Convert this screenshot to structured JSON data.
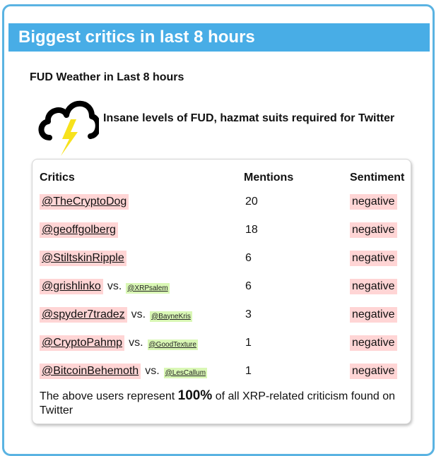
{
  "panel": {
    "title": "Biggest critics in last 8 hours"
  },
  "weather": {
    "heading": "FUD Weather in Last 8 hours",
    "icon": "storm-cloud-lightning-icon",
    "description": "Insane levels of FUD, hazmat suits required for Twitter"
  },
  "table": {
    "headers": {
      "critics": "Critics",
      "mentions": "Mentions",
      "sentiment": "Sentiment"
    },
    "rows": [
      {
        "handle": "@TheCryptoDog",
        "vs": "",
        "target": "",
        "mentions": "20",
        "sentiment": "negative"
      },
      {
        "handle": "@geoffgolberg",
        "vs": "",
        "target": "",
        "mentions": "18",
        "sentiment": "negative"
      },
      {
        "handle": "@StiltskinRipple",
        "vs": "",
        "target": "",
        "mentions": "6",
        "sentiment": "negative"
      },
      {
        "handle": "@grishlinko",
        "vs": "vs.",
        "target": "@XRPsalem",
        "mentions": "6",
        "sentiment": "negative"
      },
      {
        "handle": "@spyder7tradez",
        "vs": "vs.",
        "target": "@BayneKris",
        "mentions": "3",
        "sentiment": "negative"
      },
      {
        "handle": "@CryptoPahmp",
        "vs": "vs.",
        "target": "@GoodTexture",
        "mentions": "1",
        "sentiment": "negative"
      },
      {
        "handle": "@BitcoinBehemoth",
        "vs": "vs.",
        "target": "@LesCallum",
        "mentions": "1",
        "sentiment": "negative"
      }
    ]
  },
  "summary": {
    "prefix": "The above users represent ",
    "percent": "100%",
    "suffix": " of all XRP-related criticism found on Twitter"
  },
  "colors": {
    "header_bg": "#48ade6",
    "border": "#5ab3e2",
    "negative_bg": "#ffd5d5",
    "target_bg": "#d9f7b5",
    "lightning": "#f7e21c"
  }
}
